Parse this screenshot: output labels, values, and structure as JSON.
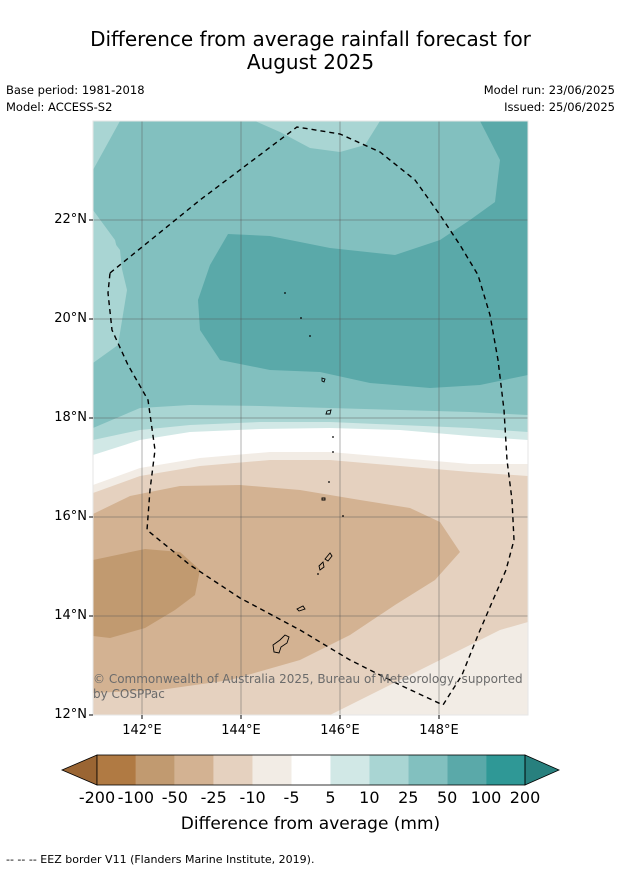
{
  "title_line1": "Difference from average rainfall forecast for",
  "title_line2": "August 2025",
  "base_period": "Base period: 1981-2018",
  "model": "Model: ACCESS-S2",
  "model_run": "Model run: 23/06/2025",
  "issued": "Issued: 25/06/2025",
  "copyright": "© Commonwealth of Australia 2025, Bureau of Meteorology, supported by COSPPac",
  "lat_labels": [
    "22°N",
    "20°N",
    "18°N",
    "16°N",
    "14°N",
    "12°N"
  ],
  "lon_labels": [
    "142°E",
    "144°E",
    "146°E",
    "148°E"
  ],
  "colorbar": {
    "labels": [
      "-200",
      "-100",
      "-50",
      "-25",
      "-10",
      "-5",
      "5",
      "10",
      "25",
      "50",
      "100",
      "200"
    ],
    "colors": [
      "#b07a43",
      "#c19a70",
      "#d3b292",
      "#e5d1bf",
      "#f2ece5",
      "#ffffff",
      "#d1e8e6",
      "#a9d5d3",
      "#82c0bf",
      "#5aa9a9",
      "#2f9896"
    ],
    "under_color": "#9a6533",
    "over_color": "#28807e",
    "title": "Difference from average (mm)"
  },
  "legend_footnote": "-- -- -- EEZ border V11 (Flanders Marine Institute, 2019)."
}
